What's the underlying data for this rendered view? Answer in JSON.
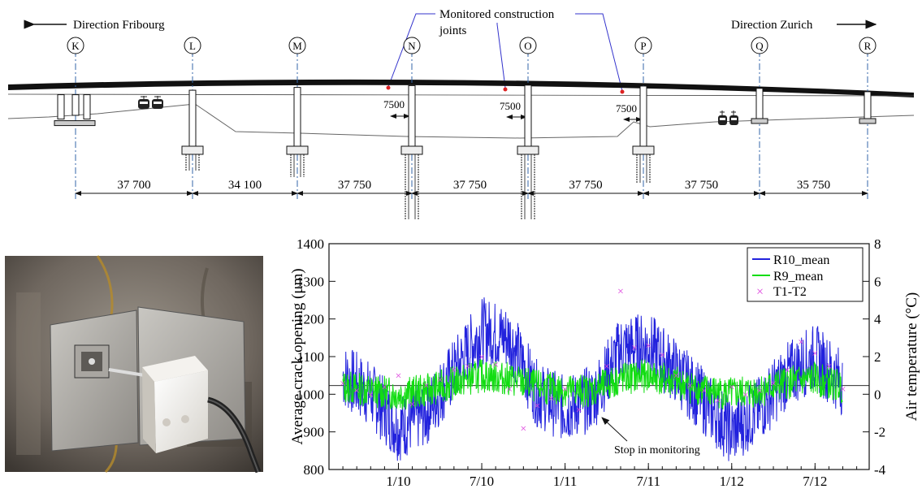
{
  "bridge": {
    "direction_left": "Direction Fribourg",
    "direction_right": "Direction Zurich",
    "callout": [
      "Monitored construction",
      "joints"
    ],
    "piers": [
      "K",
      "L",
      "M",
      "N",
      "O",
      "P",
      "Q",
      "R"
    ],
    "joint_offsets": [
      "7500",
      "7500",
      "7500"
    ],
    "spans": [
      "37 700",
      "34 100",
      "37 750",
      "37 750",
      "37 750",
      "37 750",
      "35 750"
    ]
  },
  "chart_data": {
    "type": "line",
    "ylabel": "Average crack opening (μm)",
    "y2label": "Air temperature (°C)",
    "ylim": [
      800,
      1400
    ],
    "y2lim": [
      -4,
      8
    ],
    "yticks": [
      "800",
      "900",
      "1000",
      "1100",
      "1200",
      "1300",
      "1400"
    ],
    "y2ticks": [
      "-4",
      "-2",
      "0",
      "2",
      "4",
      "6",
      "8"
    ],
    "xticks": [
      "1/10",
      "7/10",
      "1/11",
      "7/11",
      "1/12",
      "7/12"
    ],
    "legend_position": "top-right",
    "annotation": "Stop in monitoring",
    "series": [
      {
        "name": "R10_mean",
        "color": "#2222dd",
        "kind": "line",
        "x": [
          "2009-09",
          "2009-11",
          "2010-01",
          "2010-03",
          "2010-05",
          "2010-07",
          "2010-09",
          "2010-11",
          "2011-01",
          "2011-03",
          "2011-05",
          "2011-07",
          "2011-09",
          "2011-11",
          "2012-01",
          "2012-03",
          "2012-05",
          "2012-07",
          "2012-09"
        ],
        "y": [
          1050,
          1000,
          910,
          950,
          1060,
          1170,
          1150,
          1000,
          960,
          990,
          1120,
          1130,
          1060,
          980,
          900,
          960,
          1050,
          1100,
          1030
        ]
      },
      {
        "name": "R9_mean",
        "color": "#11dd11",
        "kind": "line",
        "x": [
          "2009-09",
          "2009-11",
          "2010-01",
          "2010-03",
          "2010-05",
          "2010-07",
          "2010-09",
          "2010-11",
          "2011-01",
          "2011-03",
          "2011-05",
          "2011-07",
          "2011-09",
          "2011-11",
          "2012-01",
          "2012-03",
          "2012-05",
          "2012-07",
          "2012-09"
        ],
        "y": [
          1020,
          1010,
          1000,
          1010,
          1030,
          1050,
          1040,
          1020,
          1010,
          1010,
          1040,
          1050,
          1030,
          1010,
          1000,
          1010,
          1030,
          1040,
          1020
        ]
      },
      {
        "name": "T1-T2",
        "color": "#dd44dd",
        "kind": "scatter",
        "x": [
          "2009-09",
          "2009-10",
          "2009-11",
          "2009-12",
          "2010-01",
          "2010-02",
          "2010-03",
          "2010-04",
          "2010-05",
          "2010-06",
          "2010-07",
          "2010-08",
          "2010-09",
          "2010-10",
          "2010-11",
          "2010-12",
          "2011-01",
          "2011-02",
          "2011-04",
          "2011-05",
          "2011-06",
          "2011-07",
          "2011-08",
          "2011-09",
          "2011-10",
          "2011-11",
          "2011-12",
          "2012-01",
          "2012-02",
          "2012-03",
          "2012-04",
          "2012-05",
          "2012-06",
          "2012-07",
          "2012-08",
          "2012-09"
        ],
        "y": [
          0.6,
          0.2,
          0.0,
          0.4,
          1.0,
          -0.5,
          0.5,
          0.8,
          1.3,
          1.5,
          2.0,
          1.6,
          0.3,
          -1.8,
          -0.6,
          -0.2,
          0.3,
          -0.8,
          1.5,
          5.5,
          2.5,
          2.6,
          2.1,
          1.0,
          0.5,
          0.2,
          -0.3,
          0.4,
          0.0,
          0.2,
          0.6,
          1.3,
          2.8,
          2.2,
          1.5,
          0.3
        ]
      }
    ]
  },
  "photo": {
    "alt_icon": "crack-sensor-photo"
  }
}
